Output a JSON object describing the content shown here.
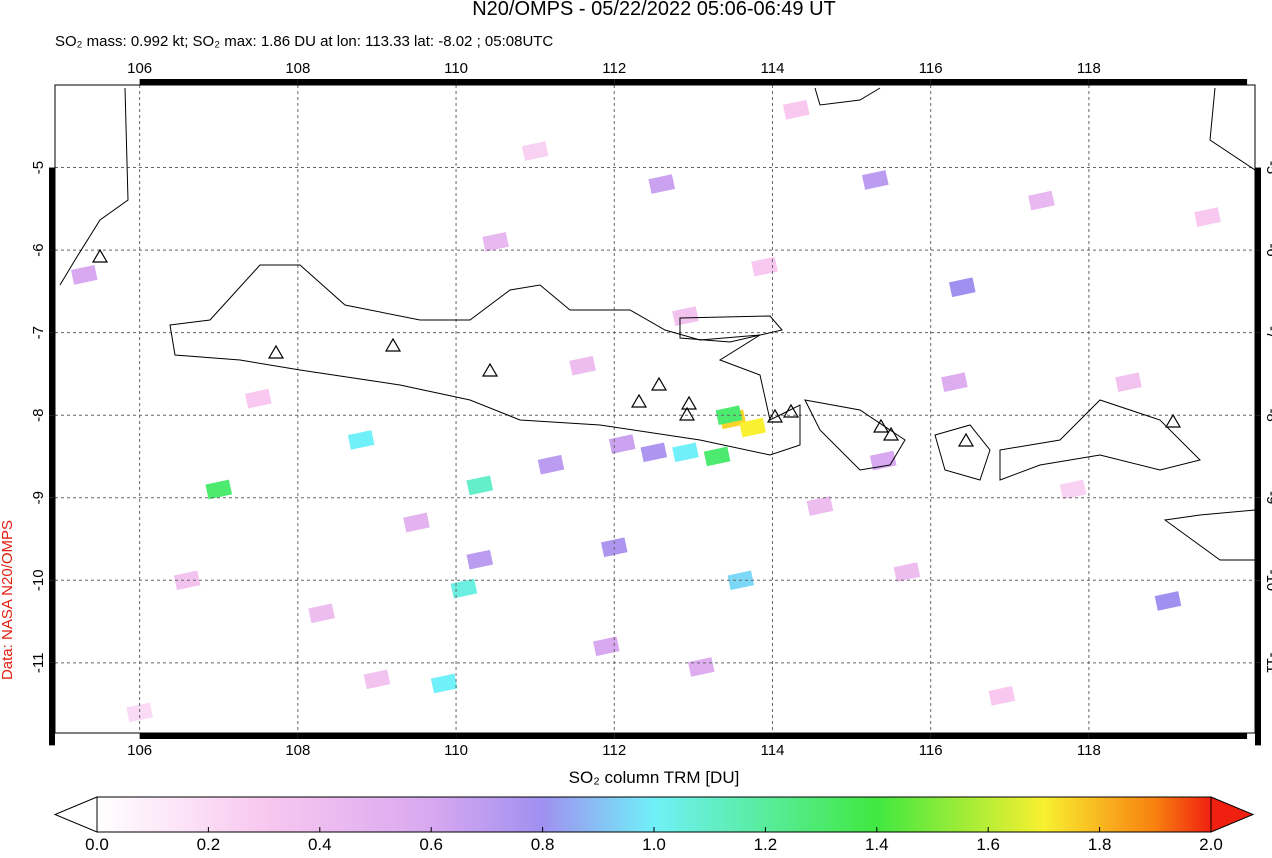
{
  "chart_data": {
    "type": "map",
    "title": "N20/OMPS - 05/22/2022 05:06-06:49 UT",
    "subtitle": "SO₂ mass: 0.992 kt; SO₂ max: 1.86 DU at lon: 113.33 lat: -8.02 ; 05:08UTC",
    "source": "Data: NASA N20/OMPS",
    "colorbar_label": "SO₂ column TRM [DU]",
    "xlim": [
      104.93,
      120.1
    ],
    "ylim": [
      -11.85,
      -4
    ],
    "xticks": [
      106,
      108,
      110,
      112,
      114,
      116,
      118
    ],
    "yticks": [
      -5,
      -6,
      -7,
      -8,
      -9,
      -10,
      -11
    ],
    "grid": true,
    "colorbar": {
      "lim": [
        0,
        2
      ],
      "ticks": [
        {
          "value": 0,
          "label": "0.0"
        },
        0.2,
        0.4,
        0.6,
        0.8,
        {
          "value": 1,
          "label": "1.0"
        },
        1.2,
        1.4,
        1.6,
        1.8,
        {
          "value": 2,
          "label": "2.0"
        }
      ]
    },
    "cells": {
      "lon": [
        113.5,
        113.75,
        113.45,
        113.3,
        112.9,
        110.3,
        107.0,
        108.8,
        110.1,
        109.85,
        112.5,
        112.0,
        112.6,
        115.3,
        116.4,
        113.6,
        119.0,
        110.3,
        111.2,
        112.1,
        105.3,
        116.3,
        115.4,
        111.9,
        113.1,
        109.5,
        110.5,
        111.6,
        114.6,
        117.4,
        106.6,
        108.3,
        112.9,
        115.7,
        118.5,
        107.5,
        109.0,
        113.9,
        116.9,
        111.0,
        114.3,
        117.8,
        106.0,
        119.5
      ],
      "lat": [
        -8.05,
        -8.15,
        -8.0,
        -8.5,
        -8.45,
        -8.85,
        -8.9,
        -8.3,
        -10.1,
        -11.25,
        -8.45,
        -9.6,
        -5.2,
        -5.15,
        -6.45,
        -10.0,
        -10.25,
        -9.75,
        -8.6,
        -8.35,
        -6.3,
        -7.6,
        -8.55,
        -10.8,
        -11.05,
        -9.3,
        -5.9,
        -7.4,
        -9.1,
        -5.4,
        -10.0,
        -10.4,
        -6.8,
        -9.9,
        -7.6,
        -7.8,
        -11.2,
        -6.2,
        -11.4,
        -4.8,
        -4.3,
        -8.9,
        -11.6,
        -5.6
      ],
      "du": [
        1.75,
        1.7,
        1.3,
        1.3,
        1.0,
        1.1,
        1.3,
        1.0,
        1.05,
        1.0,
        0.75,
        0.75,
        0.65,
        0.7,
        0.8,
        0.95,
        0.8,
        0.7,
        0.7,
        0.65,
        0.6,
        0.55,
        0.6,
        0.6,
        0.55,
        0.5,
        0.45,
        0.4,
        0.4,
        0.45,
        0.35,
        0.4,
        0.35,
        0.4,
        0.35,
        0.3,
        0.35,
        0.3,
        0.3,
        0.25,
        0.3,
        0.25,
        0.2,
        0.3
      ]
    }
  }
}
